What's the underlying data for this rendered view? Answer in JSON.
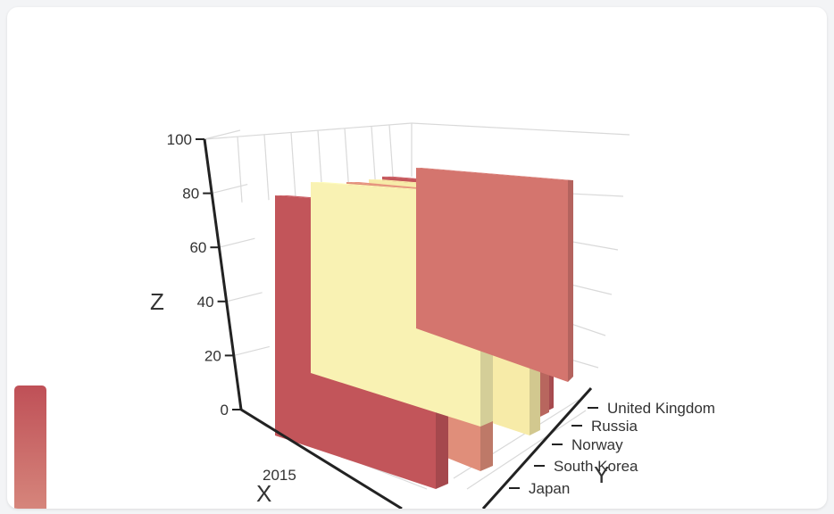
{
  "chart_data": {
    "type": "bar3d",
    "x_categories": [
      "2015"
    ],
    "y_categories": [
      "Japan",
      "South Korea",
      "Norway",
      "Russia",
      "United Kingdom"
    ],
    "xlabel": "X",
    "ylabel": "Y",
    "zlabel": "Z",
    "zlim": [
      0,
      100
    ],
    "z_ticks": [
      0,
      20,
      40,
      60,
      80,
      100
    ],
    "grid": true,
    "bars": [
      {
        "y": "Japan",
        "value": 80,
        "color": "#D4756E"
      },
      {
        "y": "Japan",
        "value": 80,
        "color": "#F9F2B3"
      },
      {
        "y": "South Korea",
        "value": 78,
        "color": "#C2555A"
      },
      {
        "y": "South Korea",
        "value": 80,
        "color": "#E08E7A"
      },
      {
        "y": "Norway",
        "value": 79,
        "color": "#F7EBA8"
      },
      {
        "y": "Norway",
        "value": 79,
        "color": "#D8786F"
      },
      {
        "y": "Russia",
        "value": 80,
        "color": "#C55A5F"
      },
      {
        "y": "Russia",
        "value": 79,
        "color": "#DD857A"
      },
      {
        "y": "United Kingdom",
        "value": 85,
        "color": "#C4575C"
      }
    ],
    "colorbar_colors": [
      "#BF5057",
      "#D6867C"
    ]
  }
}
